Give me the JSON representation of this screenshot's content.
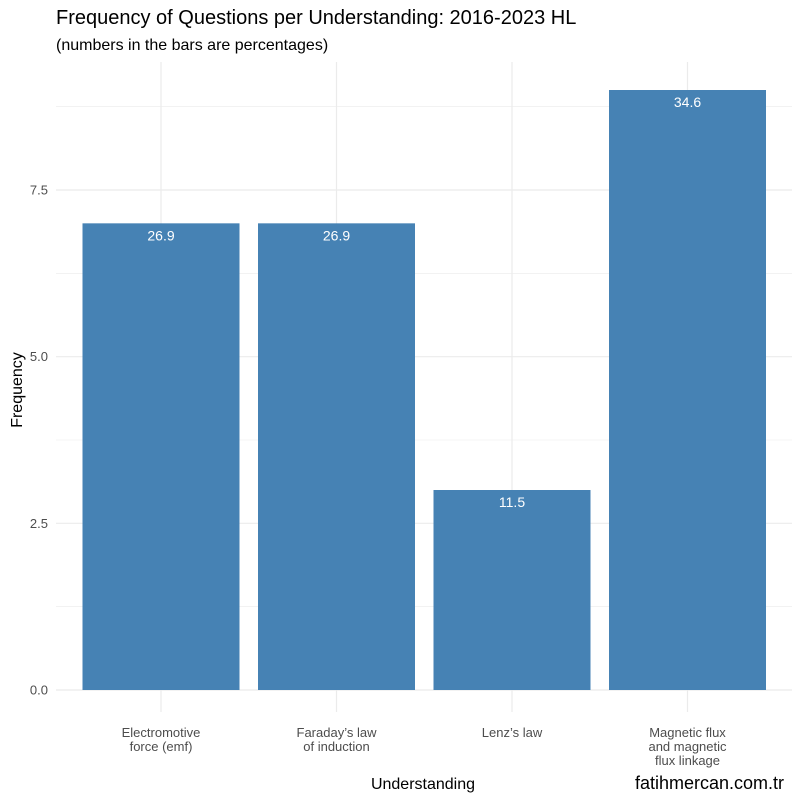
{
  "chart_data": {
    "type": "bar",
    "title": "Frequency of Questions per Understanding: 2016-2023 HL",
    "subtitle": "(numbers in the bars are percentages)",
    "xlabel": "Understanding",
    "ylabel": "Frequency",
    "categories": [
      [
        "Electromotive",
        "force (emf)"
      ],
      [
        "Faraday’s law",
        "of induction"
      ],
      [
        "Lenz’s law"
      ],
      [
        "Magnetic flux",
        "and magnetic",
        "flux linkage"
      ]
    ],
    "values": [
      7,
      7,
      3,
      9
    ],
    "bar_labels": [
      "26.9",
      "26.9",
      "11.5",
      "34.6"
    ],
    "ylim": [
      0,
      9.45
    ],
    "yticks": [
      0,
      2.5,
      5,
      7.5
    ],
    "ytick_labels": [
      "0.0",
      "2.5",
      "5.0",
      "7.5"
    ],
    "grid": true,
    "legend": "none",
    "bar_color": "#4682b4",
    "grid_color": "#ebebeb",
    "caption": "fatihmercan.com.tr"
  }
}
